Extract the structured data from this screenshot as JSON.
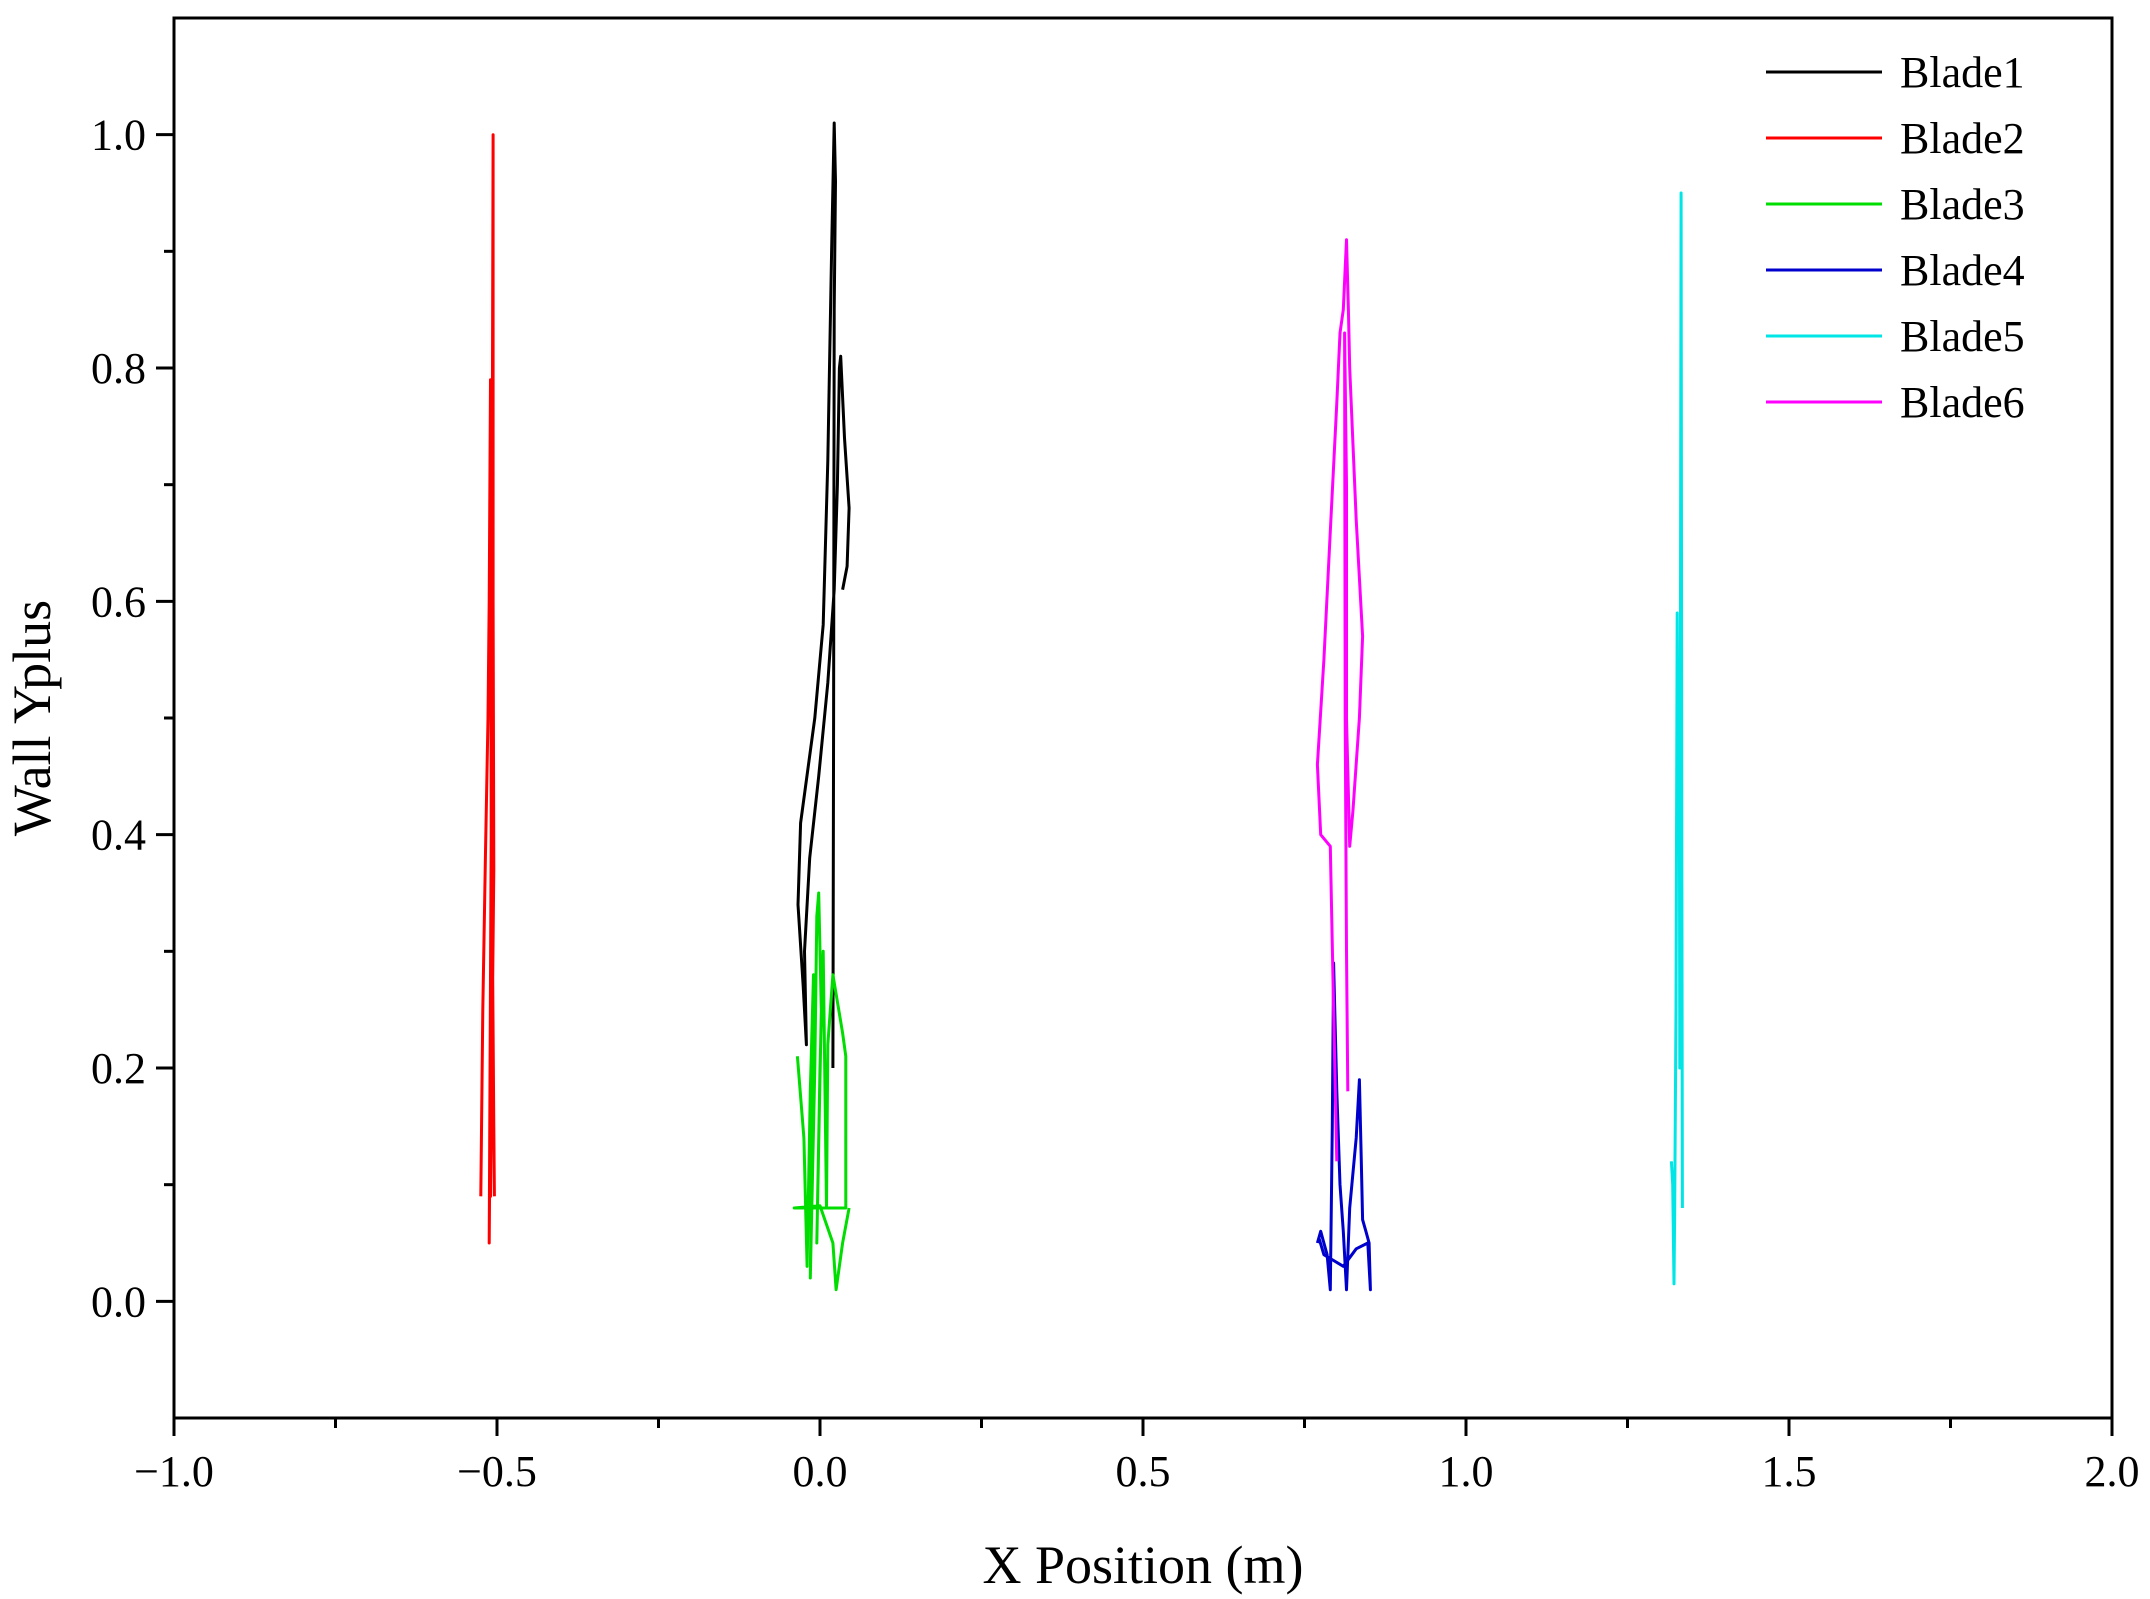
{
  "chart_data": {
    "type": "line",
    "title": "",
    "xlabel": "X Position (m)",
    "ylabel": "Wall Yplus",
    "xlim": [
      -1.0,
      2.0
    ],
    "ylim": [
      -0.1,
      1.1
    ],
    "x_ticks": [
      -1.0,
      -0.5,
      0.0,
      0.5,
      1.0,
      1.5,
      2.0
    ],
    "x_tick_labels": [
      "−1.0",
      "−0.5",
      "0.0",
      "0.5",
      "1.0",
      "1.5",
      "2.0"
    ],
    "x_minor_ticks": [
      -0.75,
      -0.25,
      0.25,
      0.75,
      1.25,
      1.75
    ],
    "y_ticks": [
      0.0,
      0.2,
      0.4,
      0.6,
      0.8,
      1.0
    ],
    "y_tick_labels": [
      "0.0",
      "0.2",
      "0.4",
      "0.6",
      "0.8",
      "1.0"
    ],
    "y_minor_ticks": [
      0.1,
      0.3,
      0.5,
      0.7,
      0.9
    ],
    "grid": false,
    "legend_position": "top-right",
    "series": [
      {
        "name": "Blade1",
        "color": "#000000",
        "points": [
          [
            0.02,
            0.2
          ],
          [
            0.021,
            0.5
          ],
          [
            0.022,
            0.85
          ],
          [
            0.024,
            0.96
          ],
          [
            0.022,
            1.01
          ],
          [
            0.018,
            0.9
          ],
          [
            0.012,
            0.72
          ],
          [
            0.005,
            0.58
          ],
          [
            -0.008,
            0.5
          ],
          [
            -0.03,
            0.41
          ],
          [
            -0.034,
            0.34
          ],
          [
            -0.026,
            0.27
          ],
          [
            -0.021,
            0.22
          ],
          [
            -0.024,
            0.3
          ],
          [
            -0.016,
            0.38
          ],
          [
            -0.002,
            0.45
          ],
          [
            0.012,
            0.53
          ],
          [
            0.022,
            0.61
          ],
          [
            0.027,
            0.7
          ],
          [
            0.03,
            0.8
          ],
          [
            0.032,
            0.81
          ],
          [
            0.038,
            0.74
          ],
          [
            0.045,
            0.68
          ],
          [
            0.042,
            0.63
          ],
          [
            0.035,
            0.61
          ]
        ]
      },
      {
        "name": "Blade2",
        "color": "#ff0000",
        "points": [
          [
            -0.525,
            0.09
          ],
          [
            -0.522,
            0.25
          ],
          [
            -0.518,
            0.38
          ],
          [
            -0.514,
            0.5
          ],
          [
            -0.512,
            0.6
          ],
          [
            -0.51,
            0.79
          ],
          [
            -0.509,
            0.4
          ],
          [
            -0.512,
            0.05
          ],
          [
            -0.51,
            0.2
          ],
          [
            -0.508,
            0.5
          ],
          [
            -0.507,
            0.8
          ],
          [
            -0.506,
            1.0
          ],
          [
            -0.506,
            0.6
          ],
          [
            -0.505,
            0.37
          ],
          [
            -0.508,
            0.2
          ],
          [
            -0.51,
            0.09
          ],
          [
            -0.507,
            0.3
          ],
          [
            -0.505,
            0.15
          ],
          [
            -0.504,
            0.09
          ]
        ]
      },
      {
        "name": "Blade3",
        "color": "#00dd00",
        "points": [
          [
            -0.035,
            0.21
          ],
          [
            -0.025,
            0.14
          ],
          [
            -0.02,
            0.03
          ],
          [
            -0.015,
            0.18
          ],
          [
            -0.01,
            0.28
          ],
          [
            -0.015,
            0.02
          ],
          [
            -0.008,
            0.2
          ],
          [
            -0.005,
            0.33
          ],
          [
            -0.002,
            0.35
          ],
          [
            0.002,
            0.25
          ],
          [
            -0.005,
            0.05
          ],
          [
            0.0,
            0.2
          ],
          [
            0.005,
            0.3
          ],
          [
            0.01,
            0.08
          ],
          [
            0.012,
            0.22
          ],
          [
            0.02,
            0.28
          ],
          [
            0.035,
            0.23
          ],
          [
            0.04,
            0.21
          ],
          [
            0.04,
            0.08
          ],
          [
            -0.04,
            0.08
          ],
          [
            0.0,
            0.082
          ],
          [
            0.02,
            0.05
          ],
          [
            0.025,
            0.01
          ],
          [
            0.035,
            0.05
          ],
          [
            0.045,
            0.08
          ]
        ]
      },
      {
        "name": "Blade4",
        "color": "#0000cc",
        "points": [
          [
            0.77,
            0.05
          ],
          [
            0.775,
            0.06
          ],
          [
            0.78,
            0.05
          ],
          [
            0.785,
            0.04
          ],
          [
            0.79,
            0.01
          ],
          [
            0.793,
            0.15
          ],
          [
            0.795,
            0.29
          ],
          [
            0.8,
            0.18
          ],
          [
            0.805,
            0.1
          ],
          [
            0.81,
            0.06
          ],
          [
            0.815,
            0.01
          ],
          [
            0.82,
            0.08
          ],
          [
            0.83,
            0.14
          ],
          [
            0.835,
            0.19
          ],
          [
            0.838,
            0.12
          ],
          [
            0.84,
            0.07
          ],
          [
            0.845,
            0.06
          ],
          [
            0.85,
            0.05
          ],
          [
            0.852,
            0.01
          ],
          [
            0.848,
            0.05
          ],
          [
            0.83,
            0.045
          ],
          [
            0.81,
            0.03
          ],
          [
            0.795,
            0.035
          ],
          [
            0.78,
            0.04
          ],
          [
            0.772,
            0.055
          ]
        ]
      },
      {
        "name": "Blade5",
        "color": "#00e5e5",
        "points": [
          [
            1.318,
            0.12
          ],
          [
            1.32,
            0.1
          ],
          [
            1.322,
            0.015
          ],
          [
            1.323,
            0.08
          ],
          [
            1.325,
            0.25
          ],
          [
            1.327,
            0.59
          ],
          [
            1.328,
            0.45
          ],
          [
            1.33,
            0.55
          ],
          [
            1.331,
            0.2
          ],
          [
            1.333,
            0.95
          ],
          [
            1.334,
            0.4
          ],
          [
            1.335,
            0.08
          ]
        ]
      },
      {
        "name": "Blade6",
        "color": "#ff00ff",
        "points": [
          [
            0.8,
            0.12
          ],
          [
            0.795,
            0.25
          ],
          [
            0.79,
            0.39
          ],
          [
            0.775,
            0.4
          ],
          [
            0.77,
            0.46
          ],
          [
            0.78,
            0.55
          ],
          [
            0.79,
            0.66
          ],
          [
            0.8,
            0.77
          ],
          [
            0.805,
            0.83
          ],
          [
            0.81,
            0.85
          ],
          [
            0.815,
            0.91
          ],
          [
            0.818,
            0.85
          ],
          [
            0.82,
            0.8
          ],
          [
            0.83,
            0.67
          ],
          [
            0.84,
            0.57
          ],
          [
            0.835,
            0.5
          ],
          [
            0.825,
            0.42
          ],
          [
            0.82,
            0.39
          ],
          [
            0.815,
            0.5
          ],
          [
            0.815,
            0.6
          ],
          [
            0.815,
            0.7
          ],
          [
            0.812,
            0.83
          ],
          [
            0.813,
            0.5
          ],
          [
            0.815,
            0.3
          ],
          [
            0.817,
            0.18
          ]
        ]
      }
    ]
  }
}
